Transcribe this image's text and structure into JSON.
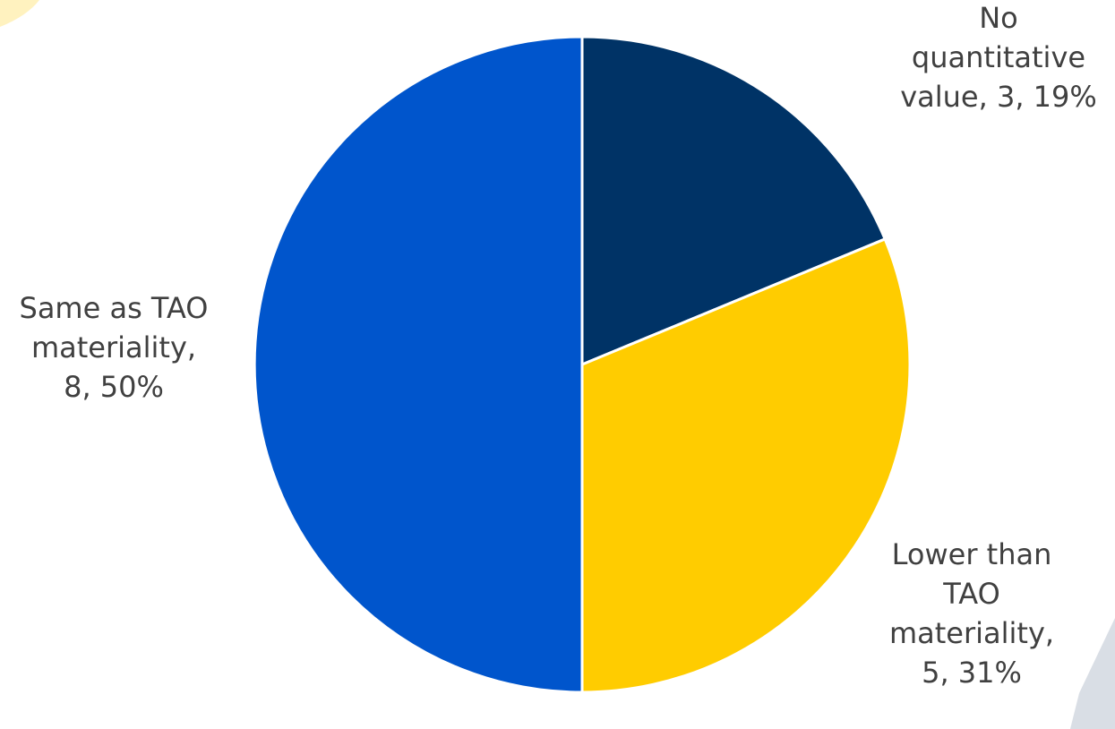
{
  "chart_data": {
    "type": "pie",
    "start_angle_deg": 0,
    "direction": "clockwise",
    "slices": [
      {
        "label": "No quantitative value",
        "value": 3,
        "percent": "19%",
        "color": "#003366",
        "label_lines": [
          "No",
          "quantitative",
          "value, 3, 19%"
        ]
      },
      {
        "label": "Lower than TAO materiality",
        "value": 5,
        "percent": "31%",
        "color": "#FFCC00",
        "label_lines": [
          "Lower than",
          "TAO",
          "materiality,",
          "5, 31%"
        ]
      },
      {
        "label": "Same as TAO materiality",
        "value": 8,
        "percent": "50%",
        "color": "#0055CC",
        "label_lines": [
          "Same as TAO",
          "materiality,",
          "8, 50%"
        ]
      }
    ],
    "slice_border_color": "#ffffff"
  },
  "decor": {
    "accent_color": "#FFCC00",
    "triangle_color": "#D9DEE5"
  }
}
